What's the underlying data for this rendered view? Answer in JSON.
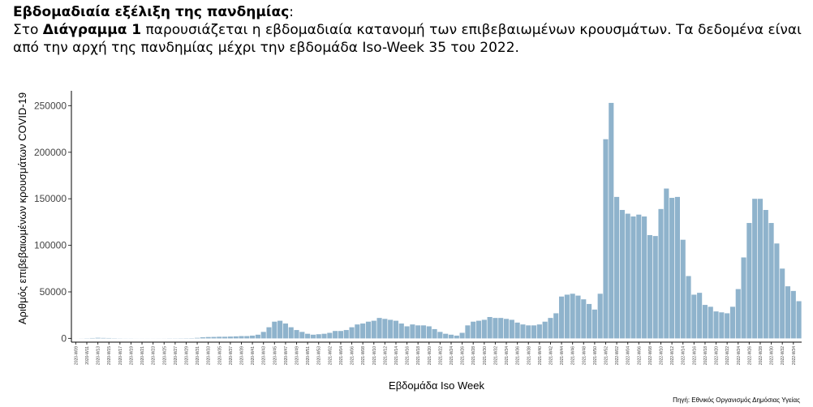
{
  "header": {
    "title": "Εβδομαδιαία εξέλιξη της πανδημίας",
    "title_suffix": ":",
    "intro_start": "Στο",
    "intro_bold": "Διάγραμμα 1",
    "intro_rest": "παρουσιάζεται η εβδομαδιαία κατανομή των επιβεβαιωμένων κρουσμάτων. Τα δεδομένα είναι από την αρχή της πανδημίας μέχρι την εβδομάδα Iso-Week 35 του 2022."
  },
  "chart_data": {
    "type": "bar",
    "ylabel": "Αριθμός επιβεβαιωμένων κρουσμάτων COVID-19",
    "xlabel": "Εβδομάδα Iso Week",
    "source": "Πηγή: Εθνικός Οργανισμός Δημόσιας Υγείας",
    "color": "#8fb3cc",
    "ylim": [
      -4000,
      266000
    ],
    "yticks": [
      0,
      50000,
      100000,
      150000,
      200000,
      250000
    ],
    "categories": [
      "2020-W09",
      null,
      "2020-W11",
      null,
      "2020-W13",
      null,
      "2020-W15",
      null,
      "2020-W17",
      null,
      "2020-W19",
      null,
      "2020-W21",
      null,
      "2020-W23",
      null,
      "2020-W25",
      null,
      "2020-W27",
      null,
      "2020-W29",
      null,
      "2020-W31",
      null,
      "2020-W33",
      null,
      "2020-W35",
      null,
      "2020-W37",
      null,
      "2020-W39",
      null,
      "2020-W41",
      null,
      "2020-W43",
      null,
      "2020-W45",
      null,
      "2020-W47",
      null,
      "2020-W49",
      null,
      "2020-W51",
      null,
      "2020-W53",
      null,
      "2021-W02",
      null,
      "2021-W04",
      null,
      "2021-W06",
      null,
      "2021-W08",
      null,
      "2021-W10",
      null,
      "2021-W12",
      null,
      "2021-W14",
      null,
      "2021-W16",
      null,
      "2021-W18",
      null,
      "2021-W20",
      null,
      "2021-W22",
      null,
      "2021-W24",
      null,
      "2021-W26",
      null,
      "2021-W28",
      null,
      "2021-W30",
      null,
      "2021-W32",
      null,
      "2021-W34",
      null,
      "2021-W36",
      null,
      "2021-W38",
      null,
      "2021-W40",
      null,
      "2021-W42",
      null,
      "2021-W44",
      null,
      "2021-W46",
      null,
      "2021-W48",
      null,
      "2021-W50",
      null,
      "2021-W52",
      null,
      "2022-W02",
      null,
      "2022-W04",
      null,
      "2022-W06",
      null,
      "2022-W08",
      null,
      "2022-W10",
      null,
      "2022-W12",
      null,
      "2022-W14",
      null,
      "2022-W16",
      null,
      "2022-W18",
      null,
      "2022-W20",
      null,
      "2022-W22",
      null,
      "2022-W24",
      null,
      "2022-W26",
      null,
      "2022-W28",
      null,
      "2022-W30",
      null,
      "2022-W32",
      null,
      "2022-W34",
      null
    ],
    "values": [
      10,
      80,
      200,
      400,
      650,
      500,
      400,
      250,
      150,
      100,
      100,
      60,
      60,
      50,
      60,
      70,
      80,
      150,
      150,
      200,
      250,
      300,
      600,
      1200,
      1500,
      1600,
      1800,
      1800,
      2000,
      2200,
      2500,
      2500,
      3000,
      4000,
      7000,
      12000,
      18000,
      19000,
      16000,
      12000,
      9000,
      7000,
      5000,
      4000,
      4500,
      5000,
      6000,
      8000,
      8000,
      9000,
      12000,
      15000,
      16000,
      18000,
      19000,
      22000,
      21000,
      20000,
      19000,
      16000,
      13000,
      15000,
      14000,
      14000,
      13000,
      10000,
      7000,
      5000,
      4000,
      3000,
      6000,
      14000,
      18000,
      19000,
      20000,
      23000,
      22000,
      22000,
      21000,
      20000,
      17000,
      15000,
      14000,
      14000,
      15000,
      18000,
      22000,
      27000,
      45000,
      47000,
      48000,
      46000,
      42000,
      37000,
      31000,
      48000,
      214000,
      253000,
      152000,
      138000,
      134000,
      131000,
      133000,
      131000,
      111000,
      110000,
      139000,
      161000,
      151000,
      152000,
      106000,
      67000,
      47000,
      49000,
      36000,
      34000,
      29000,
      28000,
      27000,
      34000,
      53000,
      87000,
      124000,
      150000,
      150000,
      138000,
      124000,
      102000,
      75000,
      56000,
      51000,
      40000
    ]
  }
}
